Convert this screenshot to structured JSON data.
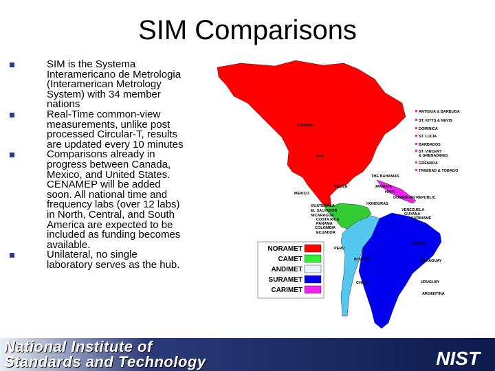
{
  "title": "SIM Comparisons",
  "bullets": [
    "SIM is the Systema Interamericano de Metrologia (Interamerican Metrology System) with 34 member nations",
    "Real-Time common-view measurements, unlike post processed Circular-T, results are updated every 10 minutes",
    "Comparisons already in progress between Canada, Mexico, and United States. CENAMEP will be added soon.  All national time and frequency labs (over 12 labs) in North, Central, and South America are expected to be included as funding becomes available.",
    "Unilateral, no single laboratory serves as the hub."
  ],
  "map": {
    "countries": [
      "CANADA",
      "USA",
      "MEXICO",
      "THE BAHAMAS",
      "BELIZE",
      "JAMAICA",
      "HAITI",
      "DOMINICAN REPUBLIC",
      "HONDURAS",
      "GUATEMALA",
      "EL SALVADOR",
      "NICARAGUA",
      "COSTA RICA",
      "PANAMA",
      "COLOMBIA",
      "VENEZUELA",
      "GUYANA",
      "SURINAME",
      "ECUADOR",
      "PERU",
      "BRAZIL",
      "BOLIVIA",
      "PARAGUAY",
      "CHILE",
      "URUGUAY",
      "ARGENTINA"
    ],
    "islands": [
      "ANTIGUA & BARBUDA",
      "ST. KITTS & NEVIS",
      "DOMINICA",
      "ST. LUCIA",
      "BARBADOS",
      "ST. VINCENT",
      "& GRENADINES",
      "GRENADA",
      "TRINIDAD & TOBAGO"
    ],
    "legend": [
      "NORAMET",
      "CAMET",
      "ANDIMET",
      "SURAMET",
      "CARIMET"
    ]
  },
  "footer": {
    "line1": "National Institute of",
    "line2": "Standards and Technology",
    "logo": "NIST"
  }
}
